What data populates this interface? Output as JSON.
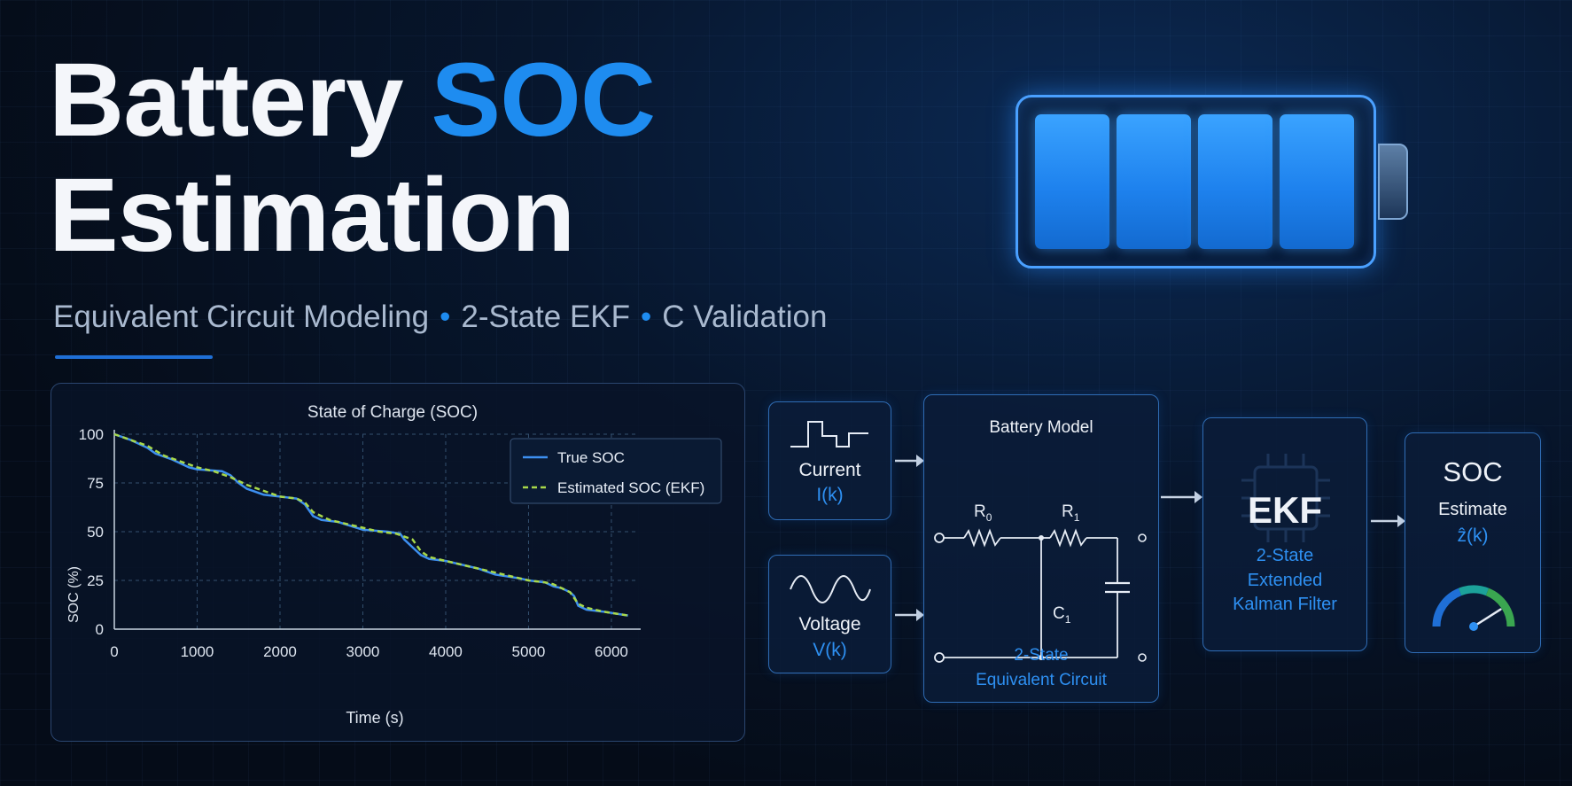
{
  "header": {
    "title_part1": "Battery ",
    "title_accent": "SOC",
    "title_line2": "Estimation",
    "subtitle_items": [
      "Equivalent Circuit Modeling",
      "2-State EKF",
      "C Validation"
    ],
    "subtitle_separator": "•"
  },
  "colors": {
    "accent": "#1e8cf0",
    "true_soc": "#3d8ff0",
    "estimated_soc": "#a8d84a",
    "gauge_blue": "#1f6fd6",
    "gauge_teal": "#1ca29a",
    "gauge_green": "#3aa650"
  },
  "chart_data": {
    "type": "line",
    "title": "State of Charge (SOC)",
    "xlabel": "Time (s)",
    "ylabel": "SOC (%)",
    "xlim": [
      0,
      6300
    ],
    "ylim": [
      0,
      100
    ],
    "xticks": [
      0,
      1000,
      2000,
      3000,
      4000,
      5000,
      6000
    ],
    "yticks": [
      0,
      25,
      50,
      75,
      100
    ],
    "grid": true,
    "legend_position": "top-right",
    "series": [
      {
        "name": "True SOC",
        "style": "solid",
        "x": [
          0,
          200,
          400,
          500,
          700,
          900,
          1000,
          1300,
          1400,
          1500,
          1600,
          1800,
          2000,
          2200,
          2300,
          2400,
          2500,
          2700,
          3000,
          3300,
          3450,
          3500,
          3600,
          3700,
          3800,
          4000,
          4200,
          4400,
          4600,
          4900,
          5000,
          5200,
          5300,
          5400,
          5500,
          5550,
          5600,
          5700,
          5900,
          6200
        ],
        "y": [
          100,
          97,
          93,
          90,
          87,
          83,
          82,
          81,
          79,
          75,
          72,
          69,
          68,
          67,
          64,
          58,
          56,
          55,
          51,
          50,
          49,
          46,
          42,
          38,
          36,
          35,
          33,
          31,
          28,
          26,
          25,
          24,
          22,
          21,
          19,
          17,
          12,
          10,
          9,
          7
        ]
      },
      {
        "name": "Estimated SOC (EKF)",
        "style": "dashed",
        "x": [
          0,
          200,
          400,
          600,
          800,
          1000,
          1200,
          1400,
          1600,
          1800,
          2000,
          2200,
          2300,
          2400,
          2600,
          2800,
          3000,
          3200,
          3400,
          3600,
          3700,
          3800,
          4000,
          4200,
          4400,
          4600,
          4800,
          5000,
          5200,
          5300,
          5400,
          5500,
          5600,
          5700,
          5900,
          6200
        ],
        "y": [
          100,
          97,
          94,
          89,
          86,
          83,
          81,
          78,
          74,
          71,
          68,
          67,
          65,
          60,
          56,
          54,
          52,
          50,
          49,
          46,
          40,
          37,
          35,
          33,
          31,
          29,
          27,
          25,
          24,
          23,
          21,
          19,
          13,
          11,
          9,
          7
        ]
      }
    ]
  },
  "diagram": {
    "current_box": {
      "label": "Current",
      "signal": "I(k)"
    },
    "voltage_box": {
      "label": "Voltage",
      "signal": "V(k)"
    },
    "model_box": {
      "title": "Battery Model",
      "r0_base": "R",
      "r0_sub": "0",
      "r1_base": "R",
      "r1_sub": "1",
      "c1_base": "C",
      "c1_sub": "1",
      "caption_line1": "2-State",
      "caption_line2": "Equivalent Circuit"
    },
    "ekf_box": {
      "title": "EKF",
      "line1": "2-State",
      "line2": "Extended",
      "line3": "Kalman Filter"
    },
    "soc_box": {
      "title": "SOC",
      "subtitle": "Estimate",
      "signal": "ẑ(k)",
      "gauge_value_fraction": 0.82
    }
  }
}
